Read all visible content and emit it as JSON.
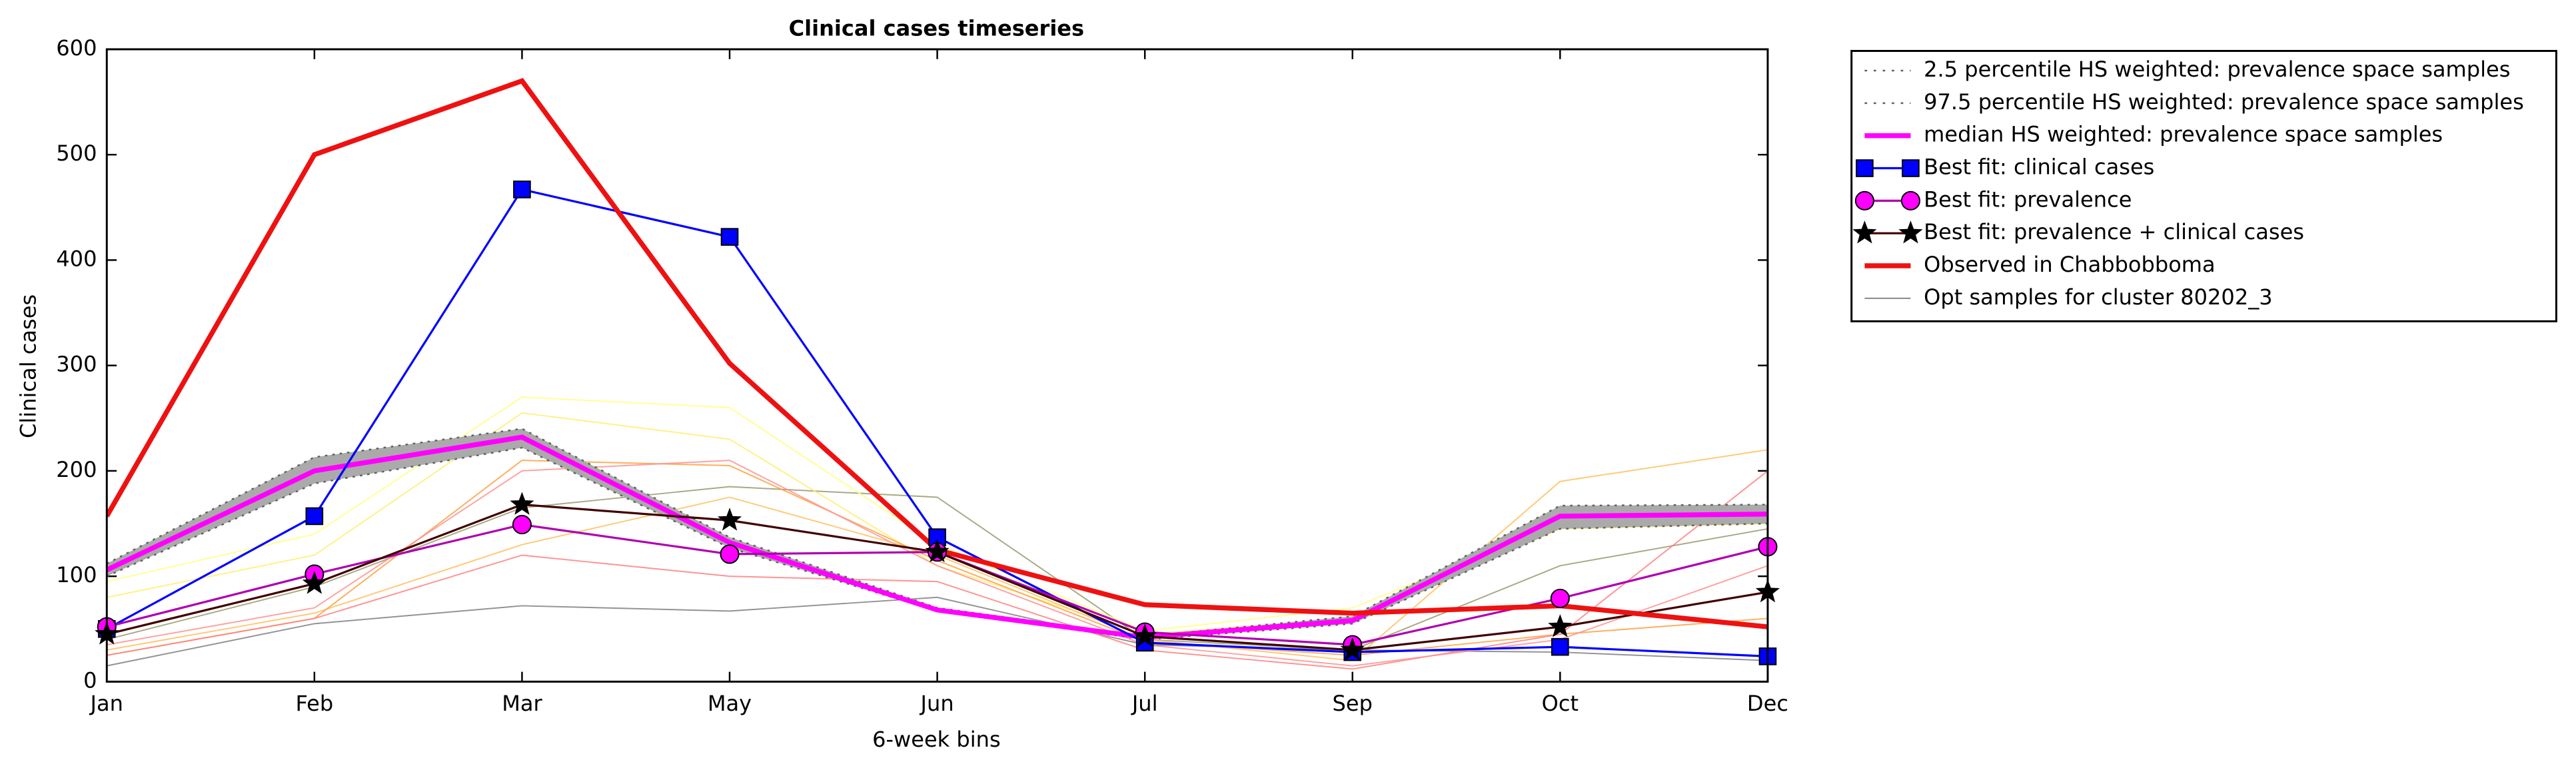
{
  "chart_data": {
    "type": "line",
    "title": "Clinical cases timeseries",
    "x_label": "6-week bins",
    "y_label": "Clinical cases",
    "categories": [
      "Jan",
      "Feb",
      "Mar",
      "May",
      "Jun",
      "Jul",
      "Sep",
      "Oct",
      "Dec"
    ],
    "ylim": [
      0,
      600
    ],
    "yticks": [
      0,
      100,
      200,
      300,
      400,
      500,
      600
    ],
    "legend": "outside upper right",
    "band_color": "#aaaaaa",
    "samples": {
      "name": "Opt samples for cluster 80202_3",
      "color": "#808080",
      "lines": [
        {
          "color": "#808080",
          "values": [
            15,
            55,
            72,
            67,
            80,
            35,
            30,
            28,
            20
          ]
        },
        {
          "color": "#9a9a70",
          "values": [
            40,
            90,
            165,
            185,
            175,
            40,
            30,
            110,
            145
          ]
        },
        {
          "color": "#ffff80",
          "values": [
            95,
            140,
            270,
            260,
            130,
            48,
            70,
            150,
            155
          ]
        },
        {
          "color": "#ffee70",
          "values": [
            80,
            120,
            255,
            230,
            110,
            45,
            60,
            145,
            150
          ]
        },
        {
          "color": "#ffc060",
          "values": [
            30,
            65,
            130,
            175,
            120,
            40,
            20,
            190,
            220
          ]
        },
        {
          "color": "#ffa040",
          "values": [
            25,
            60,
            210,
            205,
            115,
            38,
            25,
            45,
            60
          ]
        },
        {
          "color": "#ff8080",
          "values": [
            25,
            60,
            120,
            100,
            95,
            30,
            12,
            45,
            200
          ]
        },
        {
          "color": "#ff9090",
          "values": [
            35,
            70,
            200,
            210,
            110,
            35,
            15,
            40,
            110
          ]
        }
      ]
    },
    "series": [
      {
        "name": "2.5 percentile HS weighted: prevalence space samples",
        "color": "#606060",
        "style": "dotted",
        "values": [
          100,
          188,
          222,
          127,
          67,
          40,
          55,
          145,
          150
        ]
      },
      {
        "name": "97.5 percentile HS weighted: prevalence space samples",
        "color": "#606060",
        "style": "dotted",
        "values": [
          112,
          213,
          240,
          137,
          70,
          43,
          62,
          167,
          168
        ]
      },
      {
        "name": "median HS weighted: prevalence space samples",
        "color": "#ff00ff",
        "style": "thick",
        "values": [
          106,
          200,
          232,
          132,
          68,
          42,
          58,
          157,
          159
        ]
      },
      {
        "name": "Best fit: clinical cases",
        "color": "#0000ff",
        "marker": "square",
        "values": [
          50,
          157,
          467,
          422,
          137,
          37,
          28,
          33,
          24
        ]
      },
      {
        "name": "Best fit: prevalence",
        "color": "#b000b0",
        "marker_color": "#ff00ff",
        "marker": "circle",
        "values": [
          52,
          102,
          149,
          121,
          123,
          47,
          35,
          79,
          128
        ]
      },
      {
        "name": "Best fit: prevalence + clinical cases",
        "color": "#400000",
        "marker_color": "#000000",
        "marker": "star",
        "values": [
          45,
          93,
          168,
          153,
          123,
          43,
          30,
          52,
          85
        ]
      },
      {
        "name": "Observed in Chabbobboma",
        "color": "#ee1111",
        "style": "thick",
        "values": [
          157,
          500,
          570,
          302,
          125,
          73,
          65,
          72,
          52
        ]
      }
    ]
  }
}
